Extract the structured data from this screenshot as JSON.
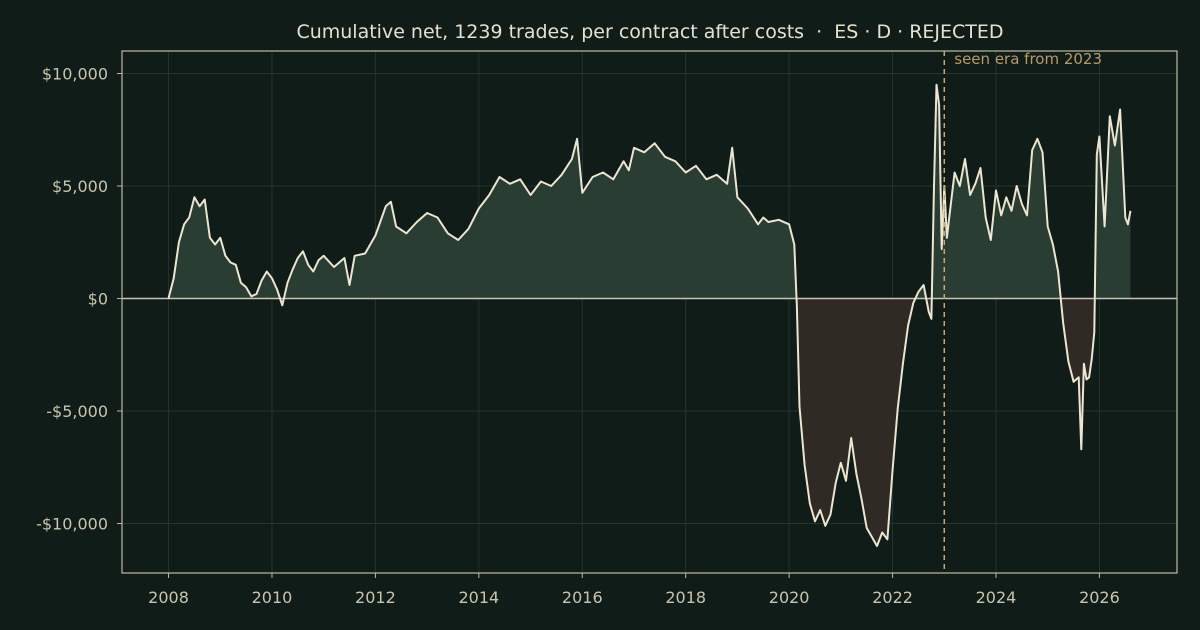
{
  "chart_data": {
    "type": "line",
    "title": "Cumulative net, 1239 trades, per contract after costs  ·  ES · D · REJECTED",
    "xlabel": "",
    "ylabel": "",
    "xlim": [
      2007.1,
      2027.5
    ],
    "ylim": [
      -12200,
      11000
    ],
    "x_ticks": [
      2008,
      2010,
      2012,
      2014,
      2016,
      2018,
      2020,
      2022,
      2024,
      2026
    ],
    "x_tick_labels": [
      "2008",
      "2010",
      "2012",
      "2014",
      "2016",
      "2018",
      "2020",
      "2022",
      "2024",
      "2026"
    ],
    "y_ticks": [
      10000,
      5000,
      0,
      -5000,
      -10000
    ],
    "y_tick_labels": [
      "$10,000",
      "$5,000",
      "$0",
      "-$5,000",
      "-$10,000"
    ],
    "grid": true,
    "fill_positive_color": "#2a3d33",
    "fill_negative_color": "#302a24",
    "line_color": "#ece5d2",
    "zero_line_color": "#c9c4b0",
    "annotation": {
      "x": 2023.0,
      "text": "seen era from 2023",
      "color": "#c9a66b"
    },
    "series": [
      {
        "x": [
          2008.0,
          2008.1,
          2008.2,
          2008.3,
          2008.4,
          2008.5,
          2008.6,
          2008.7,
          2008.8,
          2008.9,
          2009.0,
          2009.1,
          2009.2,
          2009.3,
          2009.4,
          2009.5,
          2009.6,
          2009.7,
          2009.8,
          2009.9,
          2010.0,
          2010.1,
          2010.2,
          2010.3,
          2010.4,
          2010.5,
          2010.6,
          2010.7,
          2010.8,
          2010.9,
          2011.0,
          2011.2,
          2011.4,
          2011.5,
          2011.6,
          2011.8,
          2012.0,
          2012.2,
          2012.3,
          2012.4,
          2012.6,
          2012.8,
          2013.0,
          2013.2,
          2013.4,
          2013.6,
          2013.8,
          2014.0,
          2014.2,
          2014.4,
          2014.6,
          2014.8,
          2015.0,
          2015.2,
          2015.4,
          2015.6,
          2015.8,
          2015.9,
          2016.0,
          2016.2,
          2016.4,
          2016.6,
          2016.8,
          2016.9,
          2017.0,
          2017.2,
          2017.4,
          2017.6,
          2017.8,
          2018.0,
          2018.2,
          2018.4,
          2018.6,
          2018.8,
          2018.9,
          2019.0,
          2019.2,
          2019.4,
          2019.5,
          2019.6,
          2019.8,
          2020.0,
          2020.1,
          2020.15,
          2020.2,
          2020.3,
          2020.4,
          2020.5,
          2020.6,
          2020.7,
          2020.8,
          2020.9,
          2021.0,
          2021.1,
          2021.2,
          2021.3,
          2021.4,
          2021.5,
          2021.6,
          2021.7,
          2021.8,
          2021.9,
          2022.0,
          2022.1,
          2022.2,
          2022.3,
          2022.4,
          2022.5,
          2022.6,
          2022.7,
          2022.75,
          2022.8,
          2022.85,
          2022.9,
          2022.95,
          2023.0,
          2023.05,
          2023.1,
          2023.2,
          2023.3,
          2023.4,
          2023.5,
          2023.6,
          2023.7,
          2023.8,
          2023.9,
          2024.0,
          2024.1,
          2024.2,
          2024.3,
          2024.4,
          2024.5,
          2024.6,
          2024.7,
          2024.8,
          2024.9,
          2025.0,
          2025.1,
          2025.2,
          2025.3,
          2025.4,
          2025.5,
          2025.6,
          2025.65,
          2025.7,
          2025.75,
          2025.8,
          2025.85,
          2025.9,
          2025.95,
          2026.0,
          2026.1,
          2026.2,
          2026.3,
          2026.4,
          2026.5,
          2026.55,
          2026.6
        ],
        "y": [
          0,
          900,
          2500,
          3300,
          3600,
          4500,
          4100,
          4400,
          2700,
          2400,
          2700,
          1900,
          1600,
          1500,
          700,
          500,
          100,
          200,
          800,
          1200,
          900,
          400,
          -300,
          700,
          1300,
          1800,
          2100,
          1500,
          1200,
          1700,
          1900,
          1400,
          1800,
          600,
          1900,
          2000,
          2800,
          4100,
          4300,
          3200,
          2900,
          3400,
          3800,
          3600,
          2900,
          2600,
          3100,
          4000,
          4600,
          5400,
          5100,
          5300,
          4600,
          5200,
          5000,
          5500,
          6200,
          7100,
          4700,
          5400,
          5600,
          5300,
          6100,
          5700,
          6700,
          6500,
          6900,
          6300,
          6100,
          5600,
          5900,
          5300,
          5500,
          5100,
          6700,
          4500,
          4000,
          3300,
          3600,
          3400,
          3500,
          3300,
          2400,
          -400,
          -4800,
          -7400,
          -9100,
          -9900,
          -9400,
          -10100,
          -9600,
          -8200,
          -7300,
          -8100,
          -6200,
          -7800,
          -8900,
          -10200,
          -10600,
          -11000,
          -10400,
          -10700,
          -7600,
          -4900,
          -2900,
          -1200,
          -200,
          300,
          600,
          -600,
          -900,
          4800,
          9500,
          8600,
          2200,
          5000,
          2700,
          3700,
          5600,
          5000,
          6200,
          4600,
          5100,
          5800,
          3600,
          2600,
          4800,
          3700,
          4500,
          3900,
          5000,
          4200,
          3700,
          6600,
          7100,
          6500,
          3200,
          2400,
          1200,
          -1100,
          -2800,
          -3700,
          -3500,
          -6700,
          -2900,
          -3600,
          -3500,
          -2700,
          -1500,
          6400,
          7200,
          3200,
          8100,
          6800,
          8400,
          3600,
          3300,
          3900
        ]
      }
    ]
  }
}
